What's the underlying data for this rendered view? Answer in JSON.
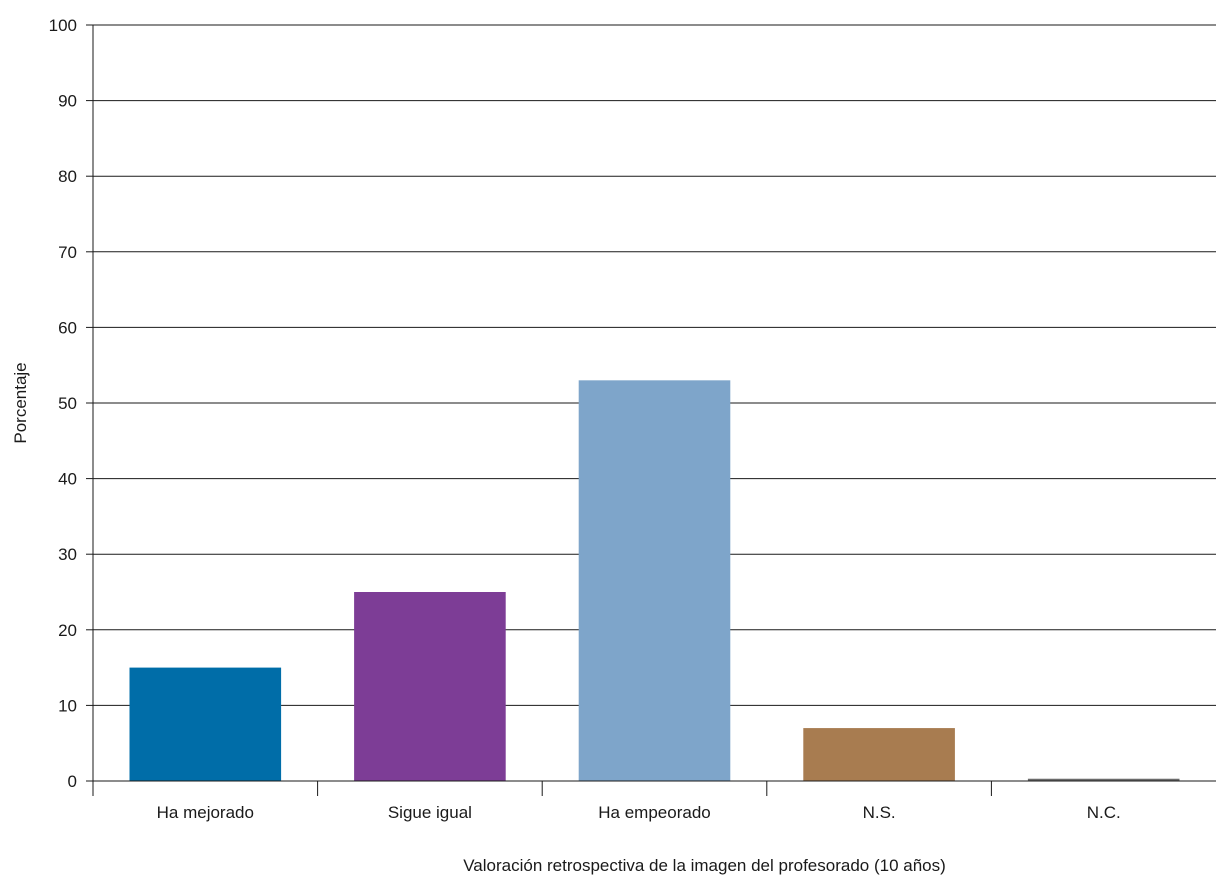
{
  "chart_data": {
    "type": "bar",
    "title": "",
    "xlabel": "Valoración retrospectiva de la imagen del profesorado (10 años)",
    "ylabel": "Porcentaje",
    "categories": [
      "Ha mejorado",
      "Sigue igual",
      "Ha empeorado",
      "N.S.",
      "N.C."
    ],
    "values": [
      15,
      25,
      53,
      7,
      0.3
    ],
    "colors": [
      "#006da8",
      "#7d3d96",
      "#7ea5ca",
      "#a87c50",
      "#6b6b6b"
    ],
    "ylim": [
      0,
      100
    ],
    "yticks": [
      0,
      10,
      20,
      30,
      40,
      50,
      60,
      70,
      80,
      90,
      100
    ],
    "grid": true,
    "legend": "none"
  }
}
